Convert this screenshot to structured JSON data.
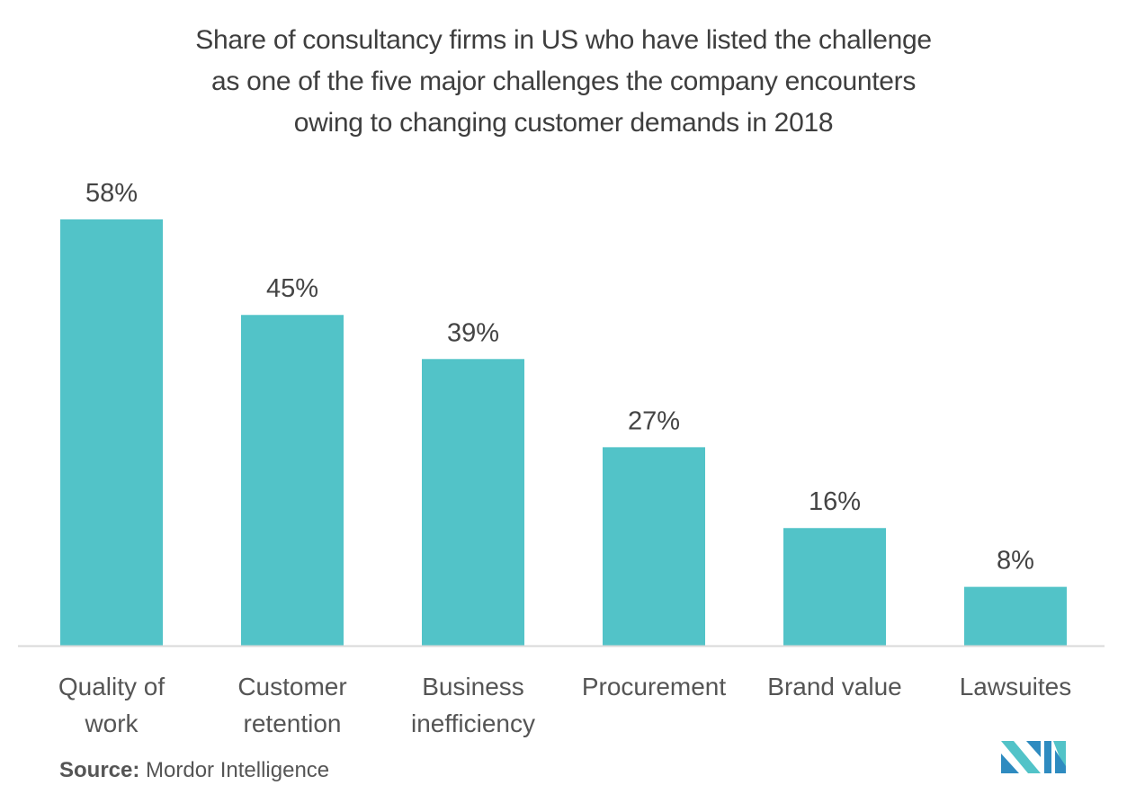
{
  "chart_data": {
    "type": "bar",
    "title": "Share of consultancy firms in US who have listed the challenge as one of the five major challenges the company encounters owing to changing customer demands in 2018",
    "title_lines": [
      "Share of consultancy firms in US who have listed the challenge",
      "as one of the five major challenges the company encounters",
      "owing to changing customer demands in 2018"
    ],
    "categories": [
      "Quality of work",
      "Customer retention",
      "Business inefficiency",
      "Procurement",
      "Brand value",
      "Lawsuites"
    ],
    "category_lines": [
      [
        "Quality of",
        "work"
      ],
      [
        "Customer",
        "retention"
      ],
      [
        "Business",
        "inefficiency"
      ],
      [
        "Procurement"
      ],
      [
        "Brand value"
      ],
      [
        "Lawsuites"
      ]
    ],
    "values": [
      58,
      45,
      39,
      27,
      16,
      8
    ],
    "data_labels": [
      "58%",
      "45%",
      "39%",
      "27%",
      "16%",
      "8%"
    ],
    "unit": "%",
    "xlabel": "",
    "ylabel": "",
    "ylim": [
      0,
      58
    ],
    "grid": false,
    "legend": "none",
    "bar_color": "#52c3c8",
    "axis_color": "#d9d9d9"
  },
  "source": {
    "label": "Source:",
    "text": "Mordor Intelligence"
  },
  "logo": {
    "name": "mordor-intelligence-logo",
    "colors": [
      "#2e8bc0",
      "#52c3c8"
    ]
  }
}
